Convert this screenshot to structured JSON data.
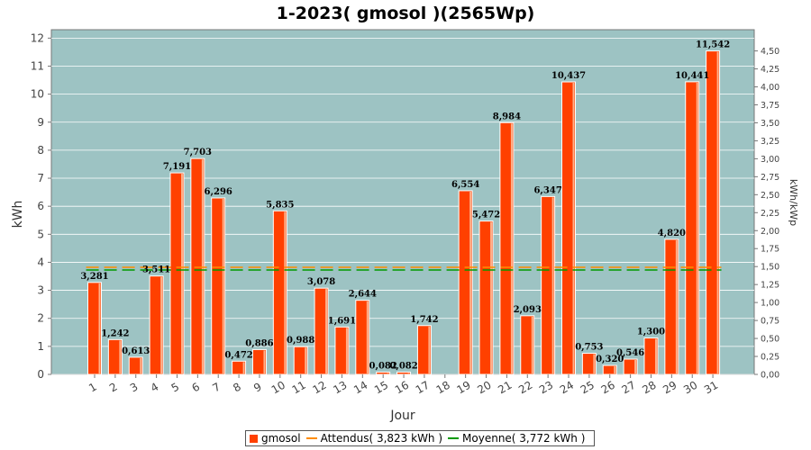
{
  "colors": {
    "bar": "#ff4000",
    "attendus": "#ff8c00",
    "moyenne": "#009900",
    "plot_bg": "#9dc3c3"
  },
  "chart_data": {
    "type": "bar",
    "title": "1-2023( gmosol )(2565Wp)",
    "xlabel": "Jour",
    "ylabel": "kWh",
    "y2label": "kWh/kWp",
    "ylim": [
      0,
      12.3
    ],
    "yticks": [
      "0",
      "1",
      "2",
      "3",
      "4",
      "5",
      "6",
      "7",
      "8",
      "9",
      "10",
      "11",
      "12"
    ],
    "y2ticks": [
      "0,00",
      "0,25",
      "0,50",
      "0,75",
      "1,00",
      "1,25",
      "1,50",
      "1,75",
      "2,00",
      "2,25",
      "2,50",
      "2,75",
      "3,00",
      "3,25",
      "3,50",
      "3,75",
      "4,00",
      "4,25",
      "4,50"
    ],
    "categories": [
      "1",
      "2",
      "3",
      "4",
      "5",
      "6",
      "7",
      "8",
      "9",
      "10",
      "11",
      "12",
      "13",
      "14",
      "15",
      "16",
      "17",
      "18",
      "19",
      "20",
      "21",
      "22",
      "23",
      "24",
      "25",
      "26",
      "27",
      "28",
      "29",
      "30",
      "31"
    ],
    "values": [
      3.281,
      1.242,
      0.613,
      3.511,
      7.191,
      7.703,
      6.296,
      0.472,
      0.886,
      5.835,
      0.988,
      3.078,
      1.691,
      2.644,
      0.082,
      0.082,
      1.742,
      0,
      6.554,
      5.472,
      8.984,
      2.093,
      6.347,
      10.437,
      0.753,
      0.32,
      0.546,
      1.3,
      4.82,
      10.441,
      11.542
    ],
    "value_labels": [
      "3,281",
      "1,242",
      "0,613",
      "3,511",
      "7,191",
      "7,703",
      "6,296",
      "0,472",
      "0,886",
      "5,835",
      "0,988",
      "3,078",
      "1,691",
      "2,644",
      "0,082",
      "0,082",
      "1,742",
      "",
      "6,554",
      "5,472",
      "8,984",
      "2,093",
      "6,347",
      "10,437",
      "0,753",
      "0,320",
      "0,546",
      "1,300",
      "4,820",
      "10,441",
      "11,542"
    ],
    "series": [
      {
        "name": "gmosol",
        "kind": "bar"
      },
      {
        "name": "Attendus( 3,823 kWh )",
        "kind": "line",
        "value": 3.823
      },
      {
        "name": "Moyenne( 3,772 kWh )",
        "kind": "line",
        "value": 3.772
      }
    ],
    "grid": true,
    "legend_position": "bottom"
  }
}
